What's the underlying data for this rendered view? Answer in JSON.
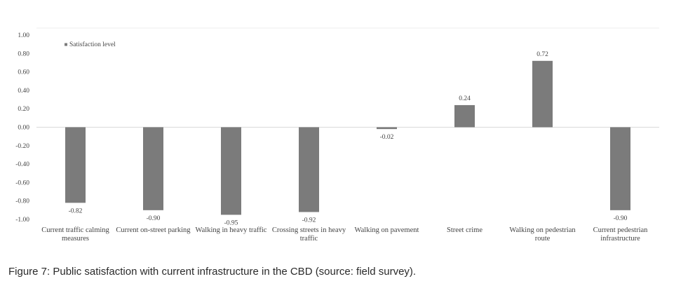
{
  "chart_data": {
    "type": "bar",
    "categories": [
      [
        "Current traffic calming",
        "measures"
      ],
      [
        "Current on-street parking"
      ],
      [
        "Walking in heavy traffic"
      ],
      [
        "Crossing streets in heavy",
        "traffic"
      ],
      [
        "Walking on pavement"
      ],
      [
        "Street crime"
      ],
      [
        "Walking on pedestrian",
        "route"
      ],
      [
        "Current pedestrian",
        "infrastructure"
      ]
    ],
    "series": [
      {
        "name": "Satisfaction level",
        "values": [
          -0.82,
          -0.9,
          -0.95,
          -0.92,
          -0.02,
          0.24,
          0.72,
          -0.9
        ],
        "labels": [
          "-0.82",
          "-0.90",
          "-0.95",
          "-0.92",
          "-0.02",
          "0.24",
          "0.72",
          "-0.90"
        ],
        "color": "#7b7b7b"
      }
    ],
    "ylim": [
      -1.0,
      1.0
    ],
    "yticks": [
      "1.00",
      "0.80",
      "0.60",
      "0.40",
      "0.20",
      "0.00",
      "-0.20",
      "-0.40",
      "-0.60",
      "-0.80",
      "-1.00"
    ],
    "ytick_values": [
      1.0,
      0.8,
      0.6,
      0.4,
      0.2,
      0.0,
      -0.2,
      -0.4,
      -0.6,
      -0.8,
      -1.0
    ],
    "legend_position": "top-left",
    "grid": false,
    "title": "",
    "xlabel": "",
    "ylabel": ""
  },
  "caption": {
    "label": "Figure 7:",
    "text": " Public satisfaction with current infrastructure in the CBD (source: field survey)."
  },
  "colors": {
    "bar": "#7b7b7b",
    "zero_line": "#d9d9d9",
    "text": "#444444"
  }
}
